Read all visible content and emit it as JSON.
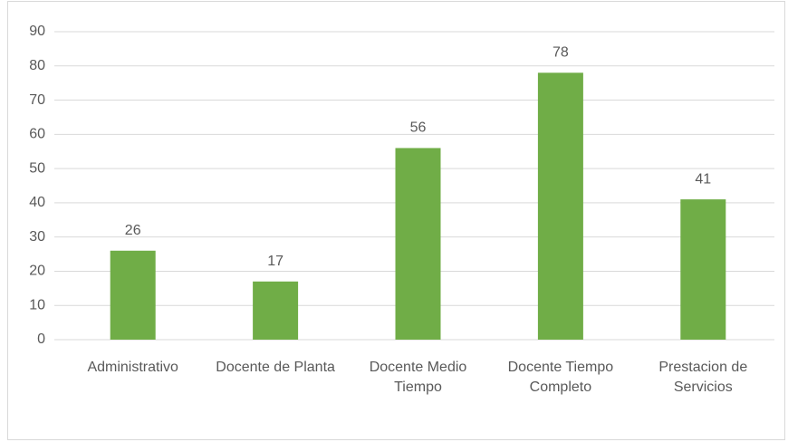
{
  "chart_data": {
    "type": "bar",
    "categories": [
      "Administrativo",
      "Docente de Planta",
      "Docente Medio Tiempo",
      "Docente Tiempo Completo",
      "Prestacion de Servicios"
    ],
    "values": [
      26,
      17,
      56,
      78,
      41
    ],
    "color": "#70ad47",
    "ylim": [
      0,
      90
    ],
    "yticks": [
      0,
      10,
      20,
      30,
      40,
      50,
      60,
      70,
      80,
      90
    ],
    "grid": true
  }
}
